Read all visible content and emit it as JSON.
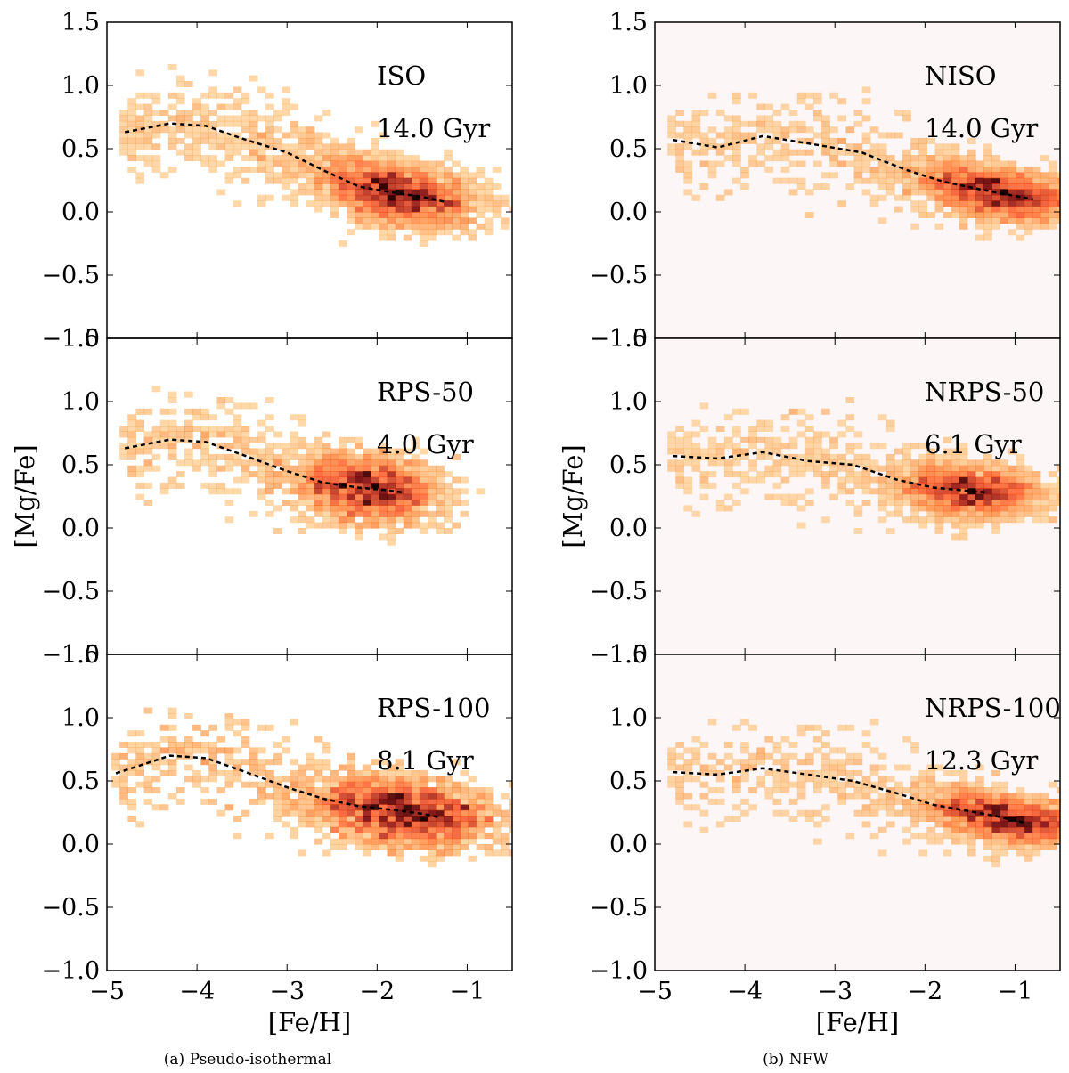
{
  "figure": {
    "captions": [
      "(a) Pseudo-isothermal",
      "(b) NFW"
    ]
  },
  "chart_data": [
    {
      "type": "heatmap",
      "column": "(a) Pseudo-isothermal",
      "label": "ISO",
      "time": "14.0 Gyr",
      "xlabel": "[Fe/H]",
      "ylabel": "[Mg/Fe]",
      "xlim": [
        -5,
        -0.5
      ],
      "ylim": [
        -1.0,
        1.5
      ],
      "xticks": [
        "−5",
        "−4",
        "−3",
        "−2",
        "−1"
      ],
      "yticks": [
        "−1.0",
        "−0.5",
        "0.0",
        "0.5",
        "1.0",
        "1.5"
      ],
      "mean_track": {
        "x": [
          -4.8,
          -4.3,
          -3.9,
          -3.5,
          -3.0,
          -2.6,
          -2.2,
          -1.8,
          -1.5,
          -1.25
        ],
        "y": [
          0.63,
          0.7,
          0.68,
          0.58,
          0.47,
          0.33,
          0.2,
          0.15,
          0.12,
          0.08
        ]
      },
      "density": {
        "peak_feh": -1.8,
        "peak_mgfe": 0.12,
        "spread_feh": 0.45,
        "spread_mgfe": 0.12
      }
    },
    {
      "type": "heatmap",
      "column": "(a) Pseudo-isothermal",
      "label": "RPS-50",
      "time": "4.0 Gyr",
      "xlabel": "[Fe/H]",
      "ylabel": "[Mg/Fe]",
      "xlim": [
        -5,
        -0.5
      ],
      "ylim": [
        -1.0,
        1.5
      ],
      "xticks": [
        "−5",
        "−4",
        "−3",
        "−2",
        "−1"
      ],
      "yticks": [
        "−1.0",
        "−0.5",
        "0.0",
        "0.5",
        "1.0",
        "1.5"
      ],
      "mean_track": {
        "x": [
          -4.8,
          -4.3,
          -3.9,
          -3.5,
          -3.0,
          -2.6,
          -2.2,
          -1.9,
          -1.7
        ],
        "y": [
          0.63,
          0.7,
          0.68,
          0.58,
          0.45,
          0.36,
          0.32,
          0.3,
          0.28
        ]
      },
      "density": {
        "peak_feh": -2.1,
        "peak_mgfe": 0.3,
        "spread_feh": 0.4,
        "spread_mgfe": 0.13
      }
    },
    {
      "type": "heatmap",
      "column": "(a) Pseudo-isothermal",
      "label": "RPS-100",
      "time": "8.1 Gyr",
      "xlabel": "[Fe/H]",
      "ylabel": "[Mg/Fe]",
      "xlim": [
        -5,
        -0.5
      ],
      "ylim": [
        -1.0,
        1.5
      ],
      "xticks": [
        "−5",
        "−4",
        "−3",
        "−2",
        "−1"
      ],
      "yticks": [
        "−1.0",
        "−0.5",
        "0.0",
        "0.5",
        "1.0",
        "1.5"
      ],
      "mean_track": {
        "x": [
          -4.9,
          -4.3,
          -3.9,
          -3.5,
          -3.0,
          -2.6,
          -2.2,
          -1.8,
          -1.5,
          -1.3
        ],
        "y": [
          0.56,
          0.7,
          0.68,
          0.58,
          0.45,
          0.36,
          0.3,
          0.27,
          0.24,
          0.21
        ]
      },
      "density": {
        "peak_feh": -1.7,
        "peak_mgfe": 0.26,
        "spread_feh": 0.5,
        "spread_mgfe": 0.13
      }
    },
    {
      "type": "heatmap",
      "column": "(b) NFW",
      "label": "NISO",
      "time": "14.0 Gyr",
      "xlabel": "[Fe/H]",
      "ylabel": "[Mg/Fe]",
      "xlim": [
        -5,
        -0.5
      ],
      "ylim": [
        -1.0,
        1.5
      ],
      "xticks": [
        "−5",
        "−4",
        "−3",
        "−2",
        "−1"
      ],
      "yticks": [
        "−1.0",
        "−0.5",
        "0.0",
        "0.5",
        "1.0",
        "1.5"
      ],
      "mean_track": {
        "x": [
          -4.8,
          -4.3,
          -3.8,
          -3.2,
          -2.7,
          -2.2,
          -1.8,
          -1.4,
          -1.1,
          -0.8
        ],
        "y": [
          0.57,
          0.51,
          0.6,
          0.53,
          0.47,
          0.33,
          0.24,
          0.18,
          0.14,
          0.1
        ]
      },
      "density": {
        "peak_feh": -1.2,
        "peak_mgfe": 0.14,
        "spread_feh": 0.45,
        "spread_mgfe": 0.1
      }
    },
    {
      "type": "heatmap",
      "column": "(b) NFW",
      "label": "NRPS-50",
      "time": "6.1 Gyr",
      "xlabel": "[Fe/H]",
      "ylabel": "[Mg/Fe]",
      "xlim": [
        -5,
        -0.5
      ],
      "ylim": [
        -1.0,
        1.5
      ],
      "xticks": [
        "−5",
        "−4",
        "−3",
        "−2",
        "−1"
      ],
      "yticks": [
        "−1.0",
        "−0.5",
        "0.0",
        "0.5",
        "1.0",
        "1.5"
      ],
      "mean_track": {
        "x": [
          -4.8,
          -4.3,
          -3.8,
          -3.3,
          -2.8,
          -2.3,
          -1.9,
          -1.6,
          -1.3
        ],
        "y": [
          0.57,
          0.55,
          0.6,
          0.53,
          0.5,
          0.38,
          0.32,
          0.3,
          0.28
        ]
      },
      "density": {
        "peak_feh": -1.5,
        "peak_mgfe": 0.32,
        "spread_feh": 0.4,
        "spread_mgfe": 0.1
      }
    },
    {
      "type": "heatmap",
      "column": "(b) NFW",
      "label": "NRPS-100",
      "time": "12.3 Gyr",
      "xlabel": "[Fe/H]",
      "ylabel": "[Mg/Fe]",
      "xlim": [
        -5,
        -0.5
      ],
      "ylim": [
        -1.0,
        1.5
      ],
      "xticks": [
        "−5",
        "−4",
        "−3",
        "−2",
        "−1"
      ],
      "yticks": [
        "−1.0",
        "−0.5",
        "0.0",
        "0.5",
        "1.0",
        "1.5"
      ],
      "mean_track": {
        "x": [
          -4.8,
          -4.3,
          -3.8,
          -3.3,
          -2.8,
          -2.3,
          -1.9,
          -1.5,
          -1.2,
          -0.9
        ],
        "y": [
          0.57,
          0.55,
          0.6,
          0.55,
          0.5,
          0.4,
          0.31,
          0.26,
          0.22,
          0.17
        ]
      },
      "density": {
        "peak_feh": -1.1,
        "peak_mgfe": 0.18,
        "spread_feh": 0.45,
        "spread_mgfe": 0.09
      }
    }
  ]
}
